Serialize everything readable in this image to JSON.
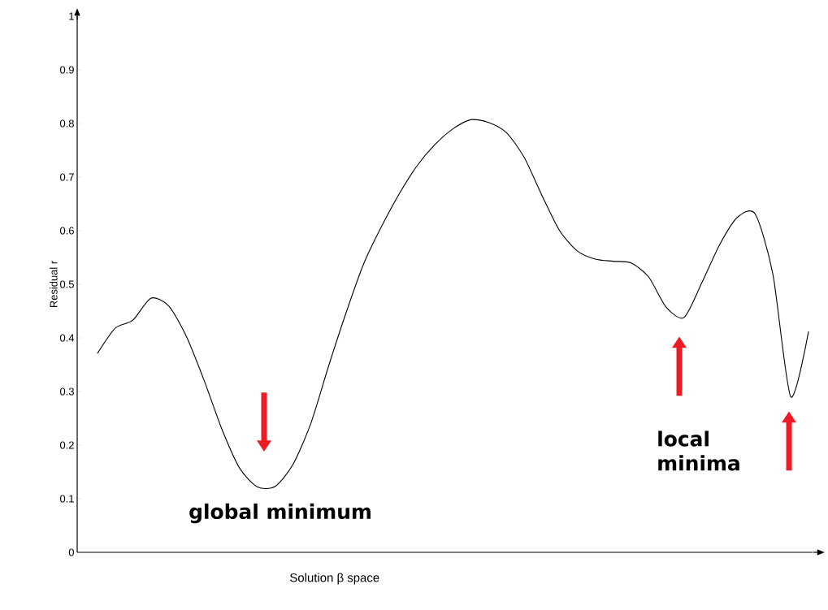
{
  "chart_data": {
    "type": "line",
    "xlabel": "Solution β space",
    "ylabel": "Residual r",
    "categories": [
      null,
      null,
      null,
      null,
      null,
      null,
      null,
      null,
      null,
      null,
      null,
      null,
      null,
      null,
      null,
      null,
      null,
      null,
      null,
      null,
      null,
      null,
      null,
      null,
      null,
      null,
      null,
      null,
      null,
      null,
      null,
      null,
      null,
      null,
      null,
      null,
      null,
      null,
      null,
      null,
      null
    ],
    "values": [
      0.371,
      0.418,
      0.433,
      0.474,
      0.46,
      0.403,
      0.321,
      0.23,
      0.157,
      0.122,
      0.123,
      0.164,
      0.24,
      0.347,
      0.448,
      0.54,
      0.609,
      0.67,
      0.722,
      0.761,
      0.79,
      0.807,
      0.802,
      0.783,
      0.737,
      0.666,
      0.6,
      0.562,
      0.547,
      0.543,
      0.54,
      0.514,
      0.457,
      0.438,
      0.503,
      0.574,
      0.625,
      0.631,
      0.518,
      0.29,
      0.412
    ],
    "color": "#000000",
    "ylim": [
      0,
      1
    ],
    "yticks": [
      0,
      0.1,
      0.2,
      0.3,
      0.4,
      0.5,
      0.6,
      0.7,
      0.8,
      0.9,
      1
    ],
    "tick_labels": "y",
    "marker": "none",
    "line_style": "solid",
    "annotations": [
      "global minimum",
      "local minima"
    ]
  }
}
